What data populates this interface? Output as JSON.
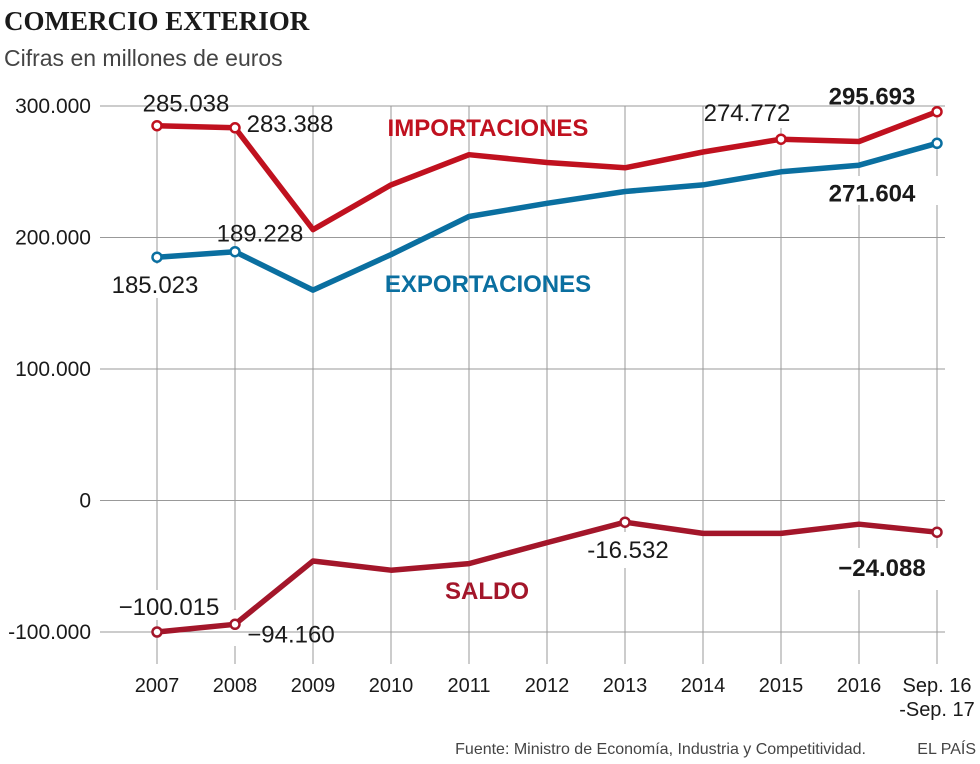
{
  "title": "COMERCIO EXTERIOR",
  "subtitle": "Cifras en millones de euros",
  "source": "Fuente: Ministro de Economía, Industria y Competitividad.",
  "credit": "EL PAÍS",
  "colors": {
    "importaciones": "#c0111f",
    "exportaciones": "#0a6fa0",
    "saldo": "#a3162a",
    "grid": "#999999"
  },
  "chart_data": {
    "type": "line",
    "categories": [
      "2007",
      "2008",
      "2009",
      "2010",
      "2011",
      "2012",
      "2013",
      "2014",
      "2015",
      "2016",
      [
        "Sep. 16",
        "-Sep. 17"
      ]
    ],
    "ylim": [
      -100000,
      300000
    ],
    "yticks": [
      {
        "value": 300000,
        "label": "300.000"
      },
      {
        "value": 200000,
        "label": "200.000"
      },
      {
        "value": 100000,
        "label": "100.000"
      },
      {
        "value": 0,
        "label": "0"
      },
      {
        "value": -100000,
        "label": "-100.000"
      }
    ],
    "grid": true,
    "series": [
      {
        "key": "importaciones",
        "name": "IMPORTACIONES",
        "values": [
          285038,
          283388,
          206000,
          240000,
          263000,
          257000,
          253000,
          265000,
          274772,
          273000,
          295693
        ]
      },
      {
        "key": "exportaciones",
        "name": "EXPORTACIONES",
        "values": [
          185023,
          189228,
          160000,
          187000,
          216000,
          226000,
          235000,
          240000,
          250000,
          255000,
          271604
        ]
      },
      {
        "key": "saldo",
        "name": "SALDO",
        "values": [
          -100015,
          -94160,
          -46000,
          -53000,
          -48000,
          -32000,
          -16532,
          -25000,
          -25000,
          -18000,
          -24088
        ]
      }
    ],
    "data_labels": [
      {
        "series": "importaciones",
        "index": 0,
        "text": "285.038"
      },
      {
        "series": "importaciones",
        "index": 1,
        "text": "283.388"
      },
      {
        "series": "importaciones",
        "index": 8,
        "text": "274.772"
      },
      {
        "series": "importaciones",
        "index": 10,
        "text": "295.693",
        "bold": true
      },
      {
        "series": "exportaciones",
        "index": 0,
        "text": "185.023"
      },
      {
        "series": "exportaciones",
        "index": 1,
        "text": "189.228"
      },
      {
        "series": "exportaciones",
        "index": 10,
        "text": "271.604",
        "bold": true
      },
      {
        "series": "saldo",
        "index": 0,
        "text": "−100.015"
      },
      {
        "series": "saldo",
        "index": 1,
        "text": "−94.160"
      },
      {
        "series": "saldo",
        "index": 6,
        "text": "-16.532"
      },
      {
        "series": "saldo",
        "index": 10,
        "text": "−24.088",
        "bold": true
      }
    ],
    "markers": [
      {
        "series": "importaciones",
        "indices": [
          0,
          1,
          8,
          10
        ]
      },
      {
        "series": "exportaciones",
        "indices": [
          0,
          1,
          10
        ]
      },
      {
        "series": "saldo",
        "indices": [
          0,
          1,
          6,
          10
        ]
      }
    ]
  }
}
